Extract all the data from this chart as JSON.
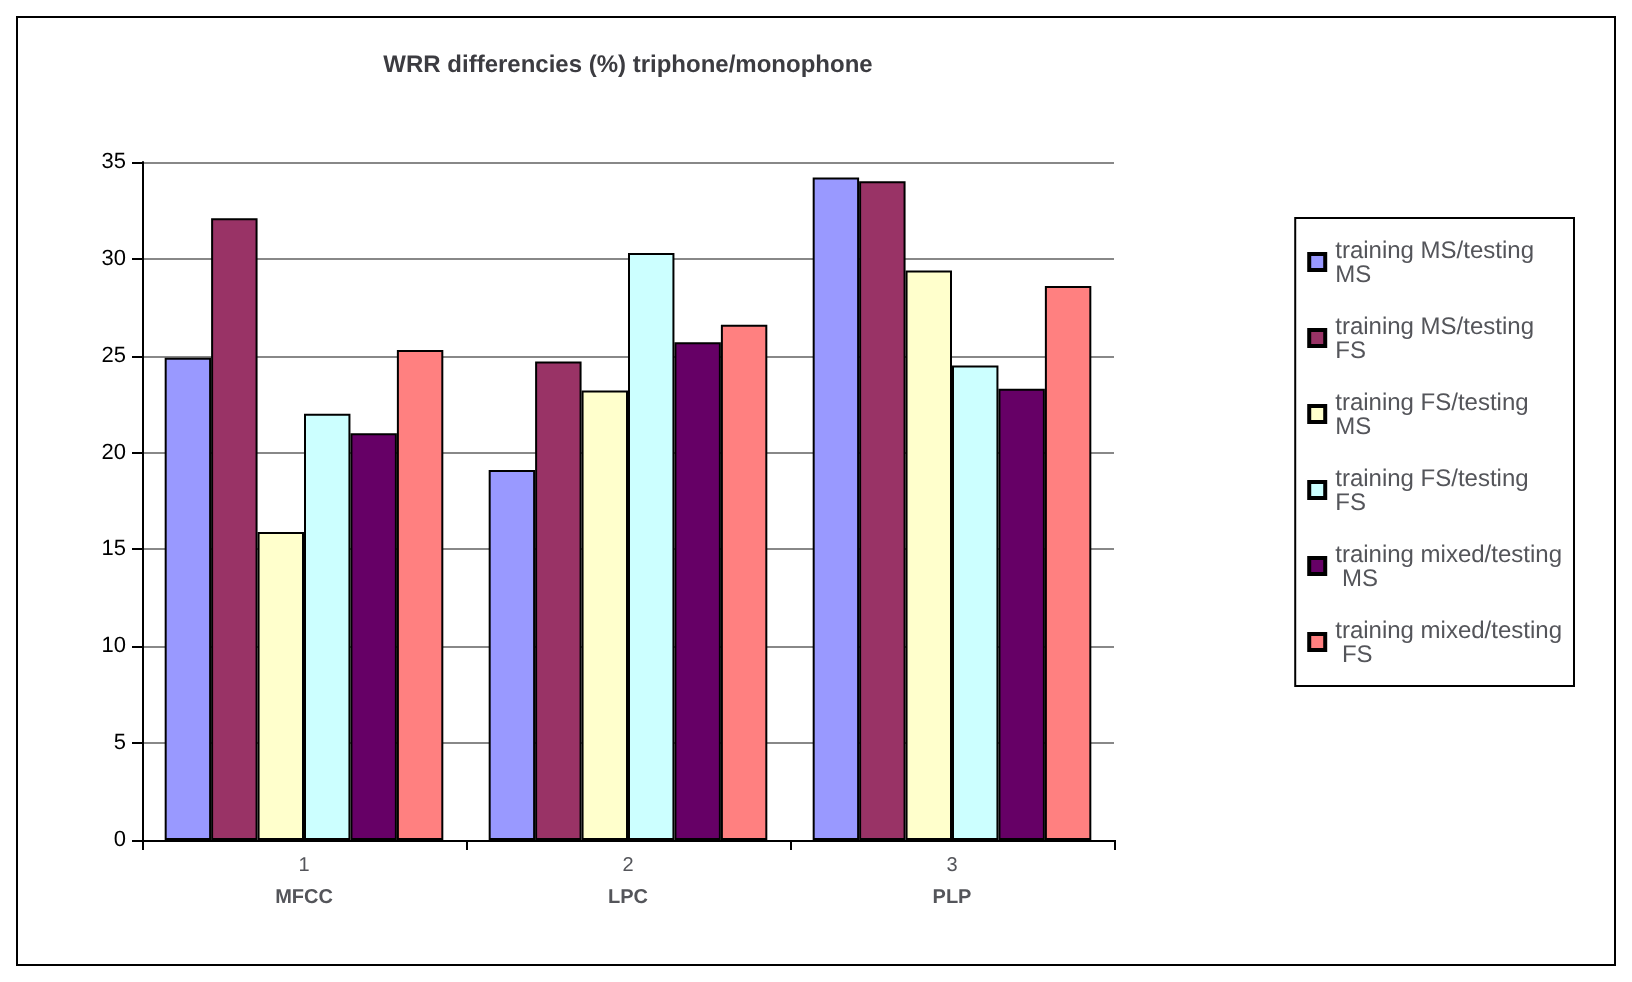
{
  "chart_data": {
    "type": "bar",
    "title": "WRR differencies (%) triphone/monophone",
    "categories": [
      "1\nMFCC",
      "2\nLPC",
      "3\nPLP"
    ],
    "series": [
      {
        "name": "training MS/testing MS",
        "color": "#9999ff",
        "values": [
          24.9,
          19.1,
          34.2
        ]
      },
      {
        "name": "training MS/testing FS",
        "color": "#993366",
        "values": [
          32.1,
          24.7,
          34.0
        ]
      },
      {
        "name": "training FS/testing MS",
        "color": "#ffffcc",
        "values": [
          15.9,
          23.2,
          29.4
        ]
      },
      {
        "name": "training FS/testing FS",
        "color": "#ccffff",
        "values": [
          22.0,
          30.3,
          24.5
        ]
      },
      {
        "name": "training mixed/testing MS",
        "color": "#660066",
        "values": [
          21.0,
          25.7,
          23.3
        ]
      },
      {
        "name": "training mixed/testing FS",
        "color": "#ff8080",
        "values": [
          25.3,
          26.6,
          28.6
        ]
      }
    ],
    "ylim": [
      0,
      35
    ],
    "yticks": [
      0,
      5,
      10,
      15,
      20,
      25,
      30,
      35
    ],
    "grid": "y",
    "legend": "right"
  }
}
